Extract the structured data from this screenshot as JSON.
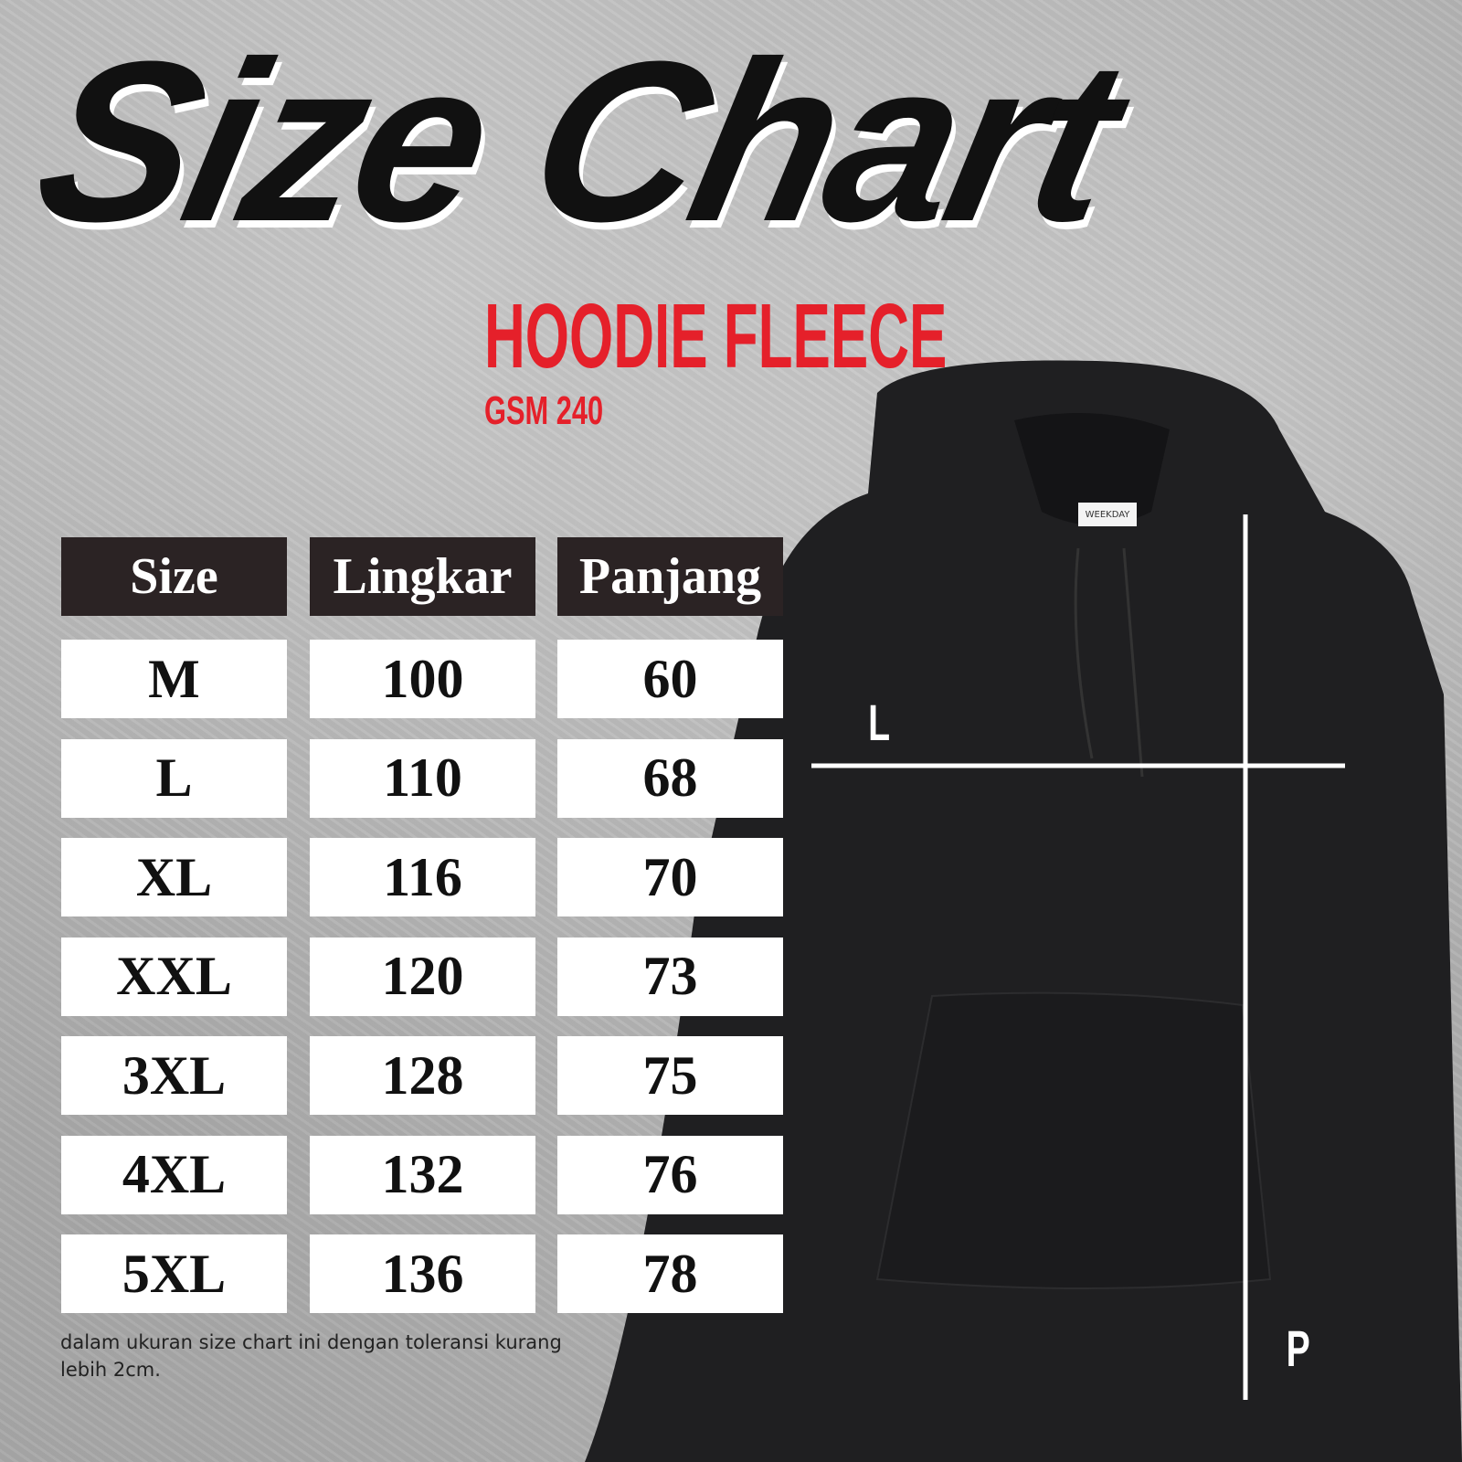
{
  "title": "Size Chart",
  "product": "HOODIE FLEECE",
  "gsm": "GSM 240",
  "colors": {
    "accent": "#e5202a",
    "header_bg": "#2b2324"
  },
  "table": {
    "headers": [
      "Size",
      "Lingkar",
      "Panjang"
    ],
    "rows": [
      [
        "M",
        "100",
        "60"
      ],
      [
        "L",
        "110",
        "68"
      ],
      [
        "XL",
        "116",
        "70"
      ],
      [
        "XXL",
        "120",
        "73"
      ],
      [
        "3XL",
        "128",
        "75"
      ],
      [
        "4XL",
        "132",
        "76"
      ],
      [
        "5XL",
        "136",
        "78"
      ]
    ]
  },
  "note": "dalam ukuran size chart ini dengan toleransi kurang lebih 2cm.",
  "hoodie": {
    "label_tag": "WEEKDAY",
    "measure_lingkar": "L",
    "measure_panjang": "P"
  }
}
